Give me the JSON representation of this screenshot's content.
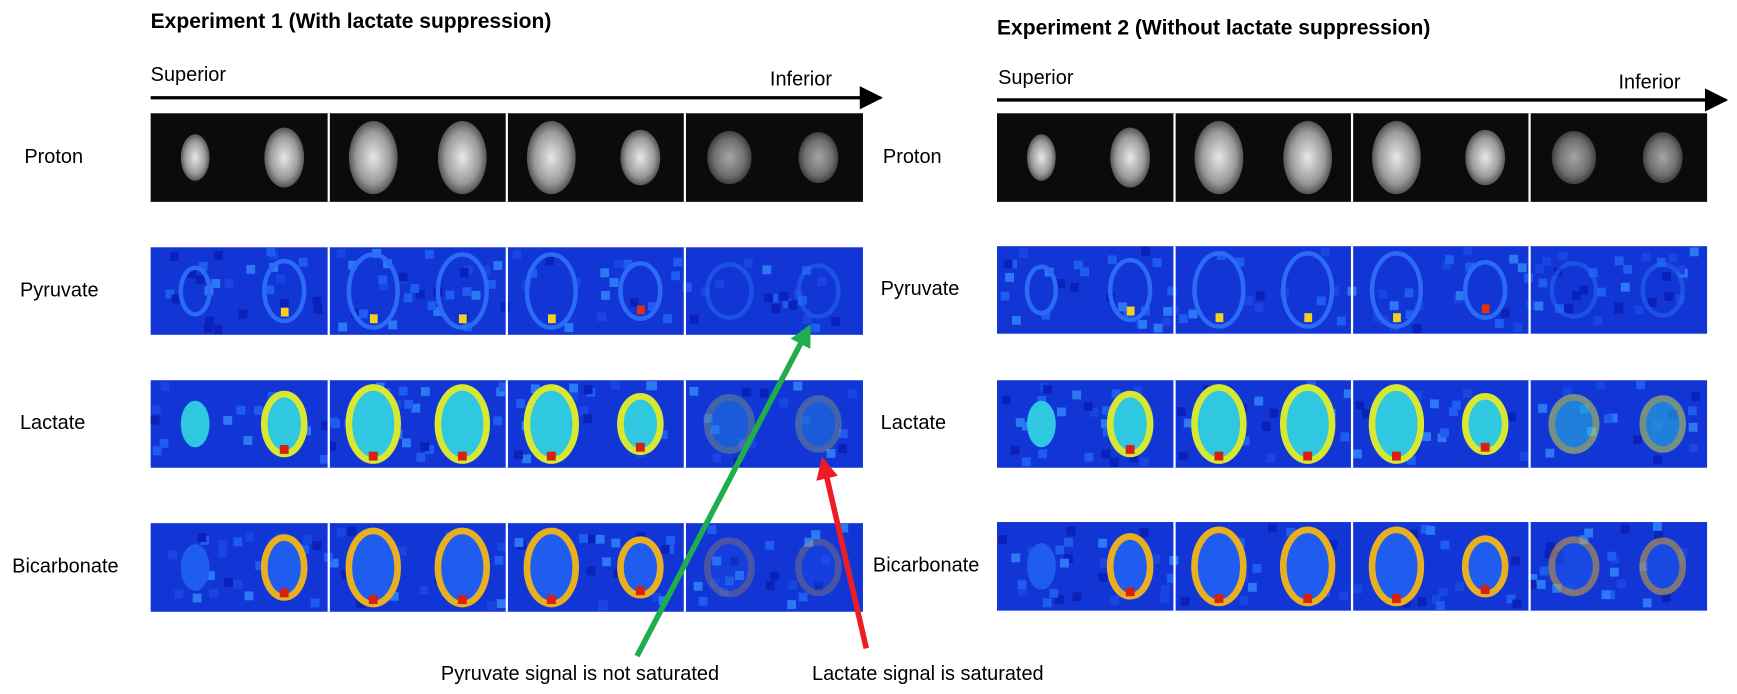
{
  "panels": [
    {
      "title": "Experiment 1 (With lactate suppression)",
      "axis_start": "Superior",
      "axis_end": "Inferior",
      "rows": [
        "Proton",
        "Pyruvate",
        "Lactate",
        "Bicarbonate"
      ]
    },
    {
      "title": "Experiment 2 (Without lactate suppression)",
      "axis_start": "Superior",
      "axis_end": "Inferior",
      "rows": [
        "Proton",
        "Pyruvate",
        "Lactate",
        "Bicarbonate"
      ]
    }
  ],
  "annotations": [
    "Pyruvate signal is not saturated",
    "Lactate signal is saturated"
  ]
}
